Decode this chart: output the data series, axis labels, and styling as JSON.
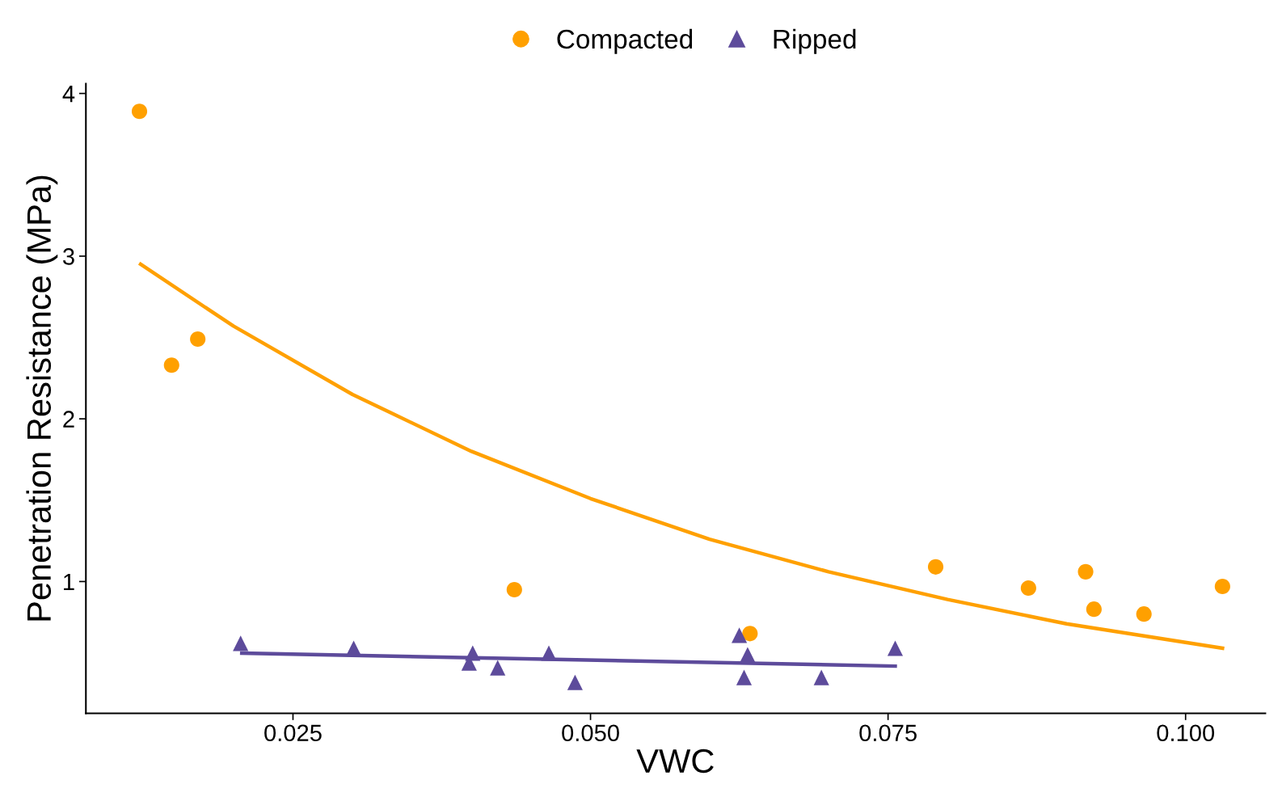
{
  "chart_data": {
    "type": "scatter",
    "xlabel": "VWC",
    "ylabel": "Penetration Resistance (MPa)",
    "xlim": [
      0.0076,
      0.1067
    ],
    "ylim": [
      0.19,
      4.06
    ],
    "xticks": [
      {
        "value": 0.025,
        "label": "0.025"
      },
      {
        "value": 0.05,
        "label": "0.050"
      },
      {
        "value": 0.075,
        "label": "0.075"
      },
      {
        "value": 0.1,
        "label": "0.100"
      }
    ],
    "yticks": [
      1,
      2,
      3,
      4
    ],
    "grid": false,
    "legend": "top",
    "series": [
      {
        "name": "Compacted",
        "marker": "circle",
        "color": "#ffa000",
        "x": [
          0.0121,
          0.0148,
          0.017,
          0.0436,
          0.0634,
          0.079,
          0.0868,
          0.0916,
          0.0923,
          0.0965,
          0.1031
        ],
        "values": [
          3.89,
          2.33,
          2.49,
          0.95,
          0.68,
          1.09,
          0.96,
          1.06,
          0.83,
          0.8,
          0.97
        ]
      },
      {
        "name": "Ripped",
        "marker": "triangle",
        "color": "#5d4b9b",
        "x": [
          0.0206,
          0.0301,
          0.0401,
          0.0398,
          0.0422,
          0.0465,
          0.0487,
          0.0625,
          0.0632,
          0.0629,
          0.0694,
          0.0756
        ],
        "values": [
          0.62,
          0.59,
          0.56,
          0.5,
          0.47,
          0.56,
          0.38,
          0.67,
          0.55,
          0.41,
          0.41,
          0.59
        ]
      },
      {
        "type": "line",
        "marker": "none",
        "color": "#ffa000",
        "x": [
          0.0122,
          0.02,
          0.03,
          0.04,
          0.05,
          0.06,
          0.07,
          0.08,
          0.09,
          0.1031
        ],
        "values": [
          2.95,
          2.57,
          2.15,
          1.8,
          1.51,
          1.26,
          1.06,
          0.89,
          0.74,
          0.59
        ]
      },
      {
        "type": "line",
        "marker": "none",
        "color": "#5d4b9b",
        "x": [
          0.0207,
          0.0756
        ],
        "values": [
          0.56,
          0.48
        ]
      }
    ]
  }
}
